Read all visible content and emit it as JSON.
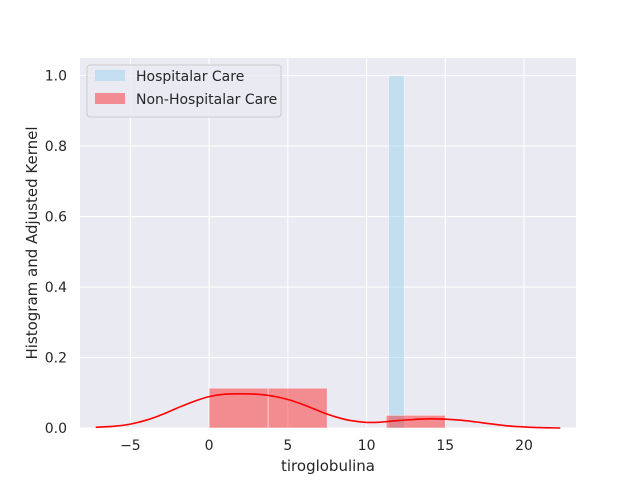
{
  "chart_data": {
    "type": "histogram+kde",
    "title": "",
    "xlabel": "tiroglobulina",
    "ylabel": "Histogram and Adjusted Kernel",
    "xlim": [
      -8.2,
      23.3
    ],
    "ylim": [
      0,
      1.05
    ],
    "x_ticks": [
      -5,
      0,
      5,
      10,
      15,
      20
    ],
    "y_ticks": [
      0.0,
      0.2,
      0.4,
      0.6,
      0.8,
      1.0
    ],
    "x_tick_labels": [
      "−5",
      "0",
      "5",
      "10",
      "15",
      "20"
    ],
    "y_tick_labels": [
      "0.0",
      "0.2",
      "0.4",
      "0.6",
      "0.8",
      "1.0"
    ],
    "grid": true,
    "legend_position": "top-left",
    "series": [
      {
        "name": "Hospitalar Care",
        "color": "#87ceeb",
        "bins": [
          {
            "x0": 11.4,
            "x1": 12.4,
            "height": 1.0
          }
        ]
      },
      {
        "name": "Non-Hospitalar Care",
        "color": "#ff0000",
        "bins": [
          {
            "x0": 0.0,
            "x1": 3.75,
            "height": 0.113
          },
          {
            "x0": 3.75,
            "x1": 7.5,
            "height": 0.113
          },
          {
            "x0": 7.5,
            "x1": 11.25,
            "height": 0.0
          },
          {
            "x0": 11.25,
            "x1": 15.0,
            "height": 0.036
          }
        ],
        "kde": {
          "x": [
            -7.2,
            -6,
            -5,
            -4,
            -3,
            -2,
            -1,
            0,
            1,
            2,
            3,
            4,
            5,
            6,
            7,
            8,
            9,
            10,
            11,
            12,
            13,
            14,
            15,
            16,
            17,
            18,
            19,
            20,
            21,
            22.3
          ],
          "y": [
            0.002,
            0.005,
            0.011,
            0.022,
            0.038,
            0.057,
            0.075,
            0.089,
            0.096,
            0.097,
            0.096,
            0.091,
            0.081,
            0.066,
            0.048,
            0.032,
            0.021,
            0.016,
            0.017,
            0.021,
            0.024,
            0.026,
            0.025,
            0.022,
            0.017,
            0.011,
            0.006,
            0.003,
            0.001,
            0.0
          ]
        }
      }
    ]
  }
}
